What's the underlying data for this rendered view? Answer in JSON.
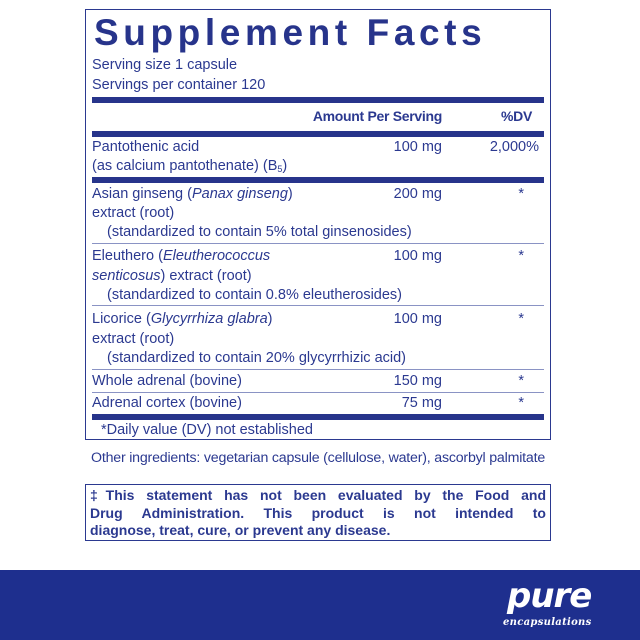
{
  "title": "Supplement Facts",
  "serving_size": "Serving size  1 capsule",
  "servings_per_container": "Servings per container  120",
  "header": {
    "amount": "Amount Per Serving",
    "dv": "%DV"
  },
  "rows": [
    {
      "name": "Pantothenic acid",
      "line2": "(as calcium pantothenate) (B",
      "line2_sub": "5",
      "line2_end": ")",
      "amount": "100 mg",
      "dv": "2,000%"
    },
    {
      "name": "Asian ginseng (",
      "latin": "Panax ginseng",
      "name_end": ")",
      "line2": "extract (root)",
      "line3": "(standardized to contain 5% total ginsenosides)",
      "amount": "200 mg",
      "dv": "*"
    },
    {
      "name": "Eleuthero (",
      "latin": "Eleutherococcus",
      "latin2": "senticosus",
      "line2": ") extract (root)",
      "line3": "(standardized to contain 0.8% eleutherosides)",
      "amount": "100 mg",
      "dv": "*"
    },
    {
      "name": "Licorice (",
      "latin": "Glycyrrhiza glabra",
      "name_end": ")",
      "line2": "extract (root)",
      "line3": "(standardized to contain 20% glycyrrhizic acid)",
      "amount": "100 mg",
      "dv": "*"
    },
    {
      "name": "Whole adrenal (bovine)",
      "amount": "150 mg",
      "dv": "*"
    },
    {
      "name": "Adrenal cortex (bovine)",
      "amount": "75 mg",
      "dv": "*"
    }
  ],
  "footnote": "*Daily value (DV) not established",
  "other_ingredients": "Other ingredients: vegetarian capsule (cellulose, water), ascorbyl palmitate",
  "disclaimer": [
    "‡This statement has not been evaluated by the Food and",
    "Drug Administration. This product is not intended to",
    "diagnose, treat, cure, or prevent any disease."
  ],
  "brand": {
    "logo_text": "pure",
    "logo_sub": "encapsulations",
    "color": "#1e2f8e"
  },
  "colors": {
    "text": "#2b3990",
    "rule": "#27348b"
  }
}
